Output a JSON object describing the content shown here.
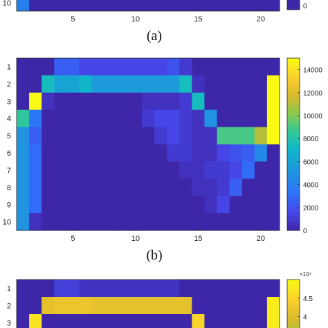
{
  "captions": {
    "a": "(a)",
    "b": "(b)"
  },
  "colors": {
    "low": "#3e26a8",
    "frame": "#222222"
  },
  "chart_data": [
    {
      "panel": "a",
      "type": "heatmap",
      "visible": "bottom edge only (cropped)",
      "xticks": [
        "5",
        "10",
        "15",
        "20"
      ],
      "yticks": [
        "10"
      ],
      "colorbar_ticks": [
        "0"
      ],
      "row10_values": [
        4000,
        0,
        0,
        0,
        0,
        0,
        0,
        0,
        0,
        0,
        0,
        0,
        0,
        0,
        0,
        0,
        0,
        0,
        0,
        0,
        0
      ]
    },
    {
      "panel": "b",
      "type": "heatmap",
      "rows": [
        "1",
        "2",
        "3",
        "4",
        "5",
        "6",
        "7",
        "8",
        "9",
        "10"
      ],
      "n_cols": 21,
      "xticks": [
        "5",
        "10",
        "15",
        "20"
      ],
      "colorbar_ticks": [
        "0",
        "2000",
        "4000",
        "6000",
        "8000",
        "10000",
        "12000",
        "14000"
      ],
      "zlim": [
        0,
        15000
      ],
      "values": [
        [
          0,
          0,
          0,
          2500,
          2500,
          1500,
          1500,
          1500,
          1500,
          1500,
          1500,
          1500,
          2000,
          1000,
          0,
          0,
          0,
          0,
          0,
          0,
          0
        ],
        [
          0,
          0,
          7500,
          6000,
          6000,
          7000,
          5500,
          5500,
          5500,
          5500,
          5500,
          5500,
          5500,
          7500,
          500,
          0,
          0,
          0,
          0,
          0,
          15000
        ],
        [
          0,
          15000,
          500,
          0,
          0,
          0,
          0,
          0,
          0,
          0,
          500,
          500,
          500,
          1000,
          7500,
          0,
          0,
          0,
          0,
          0,
          15000
        ],
        [
          8500,
          3500,
          0,
          0,
          0,
          0,
          0,
          0,
          0,
          0,
          1000,
          1500,
          1500,
          1000,
          500,
          5000,
          0,
          0,
          0,
          0,
          15000
        ],
        [
          5000,
          2500,
          0,
          0,
          0,
          0,
          0,
          0,
          0,
          0,
          0,
          1000,
          1500,
          1000,
          500,
          500,
          9000,
          9000,
          9000,
          11000,
          15000
        ],
        [
          5000,
          3000,
          0,
          0,
          0,
          0,
          0,
          0,
          0,
          0,
          0,
          0,
          1000,
          1000,
          500,
          500,
          1500,
          2000,
          2500,
          4500,
          0
        ],
        [
          5000,
          3000,
          0,
          0,
          0,
          0,
          0,
          0,
          0,
          0,
          0,
          0,
          0,
          500,
          500,
          1000,
          1000,
          1500,
          3000,
          0,
          0
        ],
        [
          5000,
          3000,
          0,
          0,
          0,
          0,
          0,
          0,
          0,
          0,
          0,
          0,
          0,
          0,
          500,
          500,
          1000,
          2500,
          0,
          0,
          0
        ],
        [
          5000,
          3000,
          0,
          0,
          0,
          0,
          0,
          0,
          0,
          0,
          0,
          0,
          0,
          0,
          0,
          500,
          1500,
          0,
          0,
          0,
          0
        ],
        [
          5000,
          500,
          0,
          0,
          0,
          0,
          0,
          0,
          0,
          0,
          0,
          0,
          0,
          0,
          0,
          0,
          0,
          0,
          0,
          0,
          0
        ]
      ]
    },
    {
      "panel": "c",
      "type": "heatmap",
      "visible": "top rows only (cropped)",
      "rows": [
        "1",
        "2",
        "3"
      ],
      "n_cols": 21,
      "xticks": [],
      "colorbar_ticks": [
        "4.5",
        "4"
      ],
      "colorbar_exponent": "×10⁴",
      "zlim": [
        0,
        50000
      ],
      "values": [
        [
          0,
          0,
          0,
          4000,
          4000,
          2000,
          2000,
          2000,
          2000,
          2000,
          2000,
          2000,
          2000,
          0,
          0,
          0,
          0,
          0,
          0,
          0,
          0
        ],
        [
          0,
          0,
          41000,
          42000,
          42000,
          42000,
          41000,
          41000,
          41000,
          41000,
          41000,
          41000,
          41000,
          41000,
          0,
          0,
          0,
          0,
          0,
          0,
          48000
        ],
        [
          0,
          47000,
          0,
          0,
          0,
          0,
          0,
          0,
          0,
          0,
          0,
          0,
          0,
          0,
          45000,
          0,
          0,
          0,
          0,
          0,
          48000
        ]
      ]
    }
  ]
}
